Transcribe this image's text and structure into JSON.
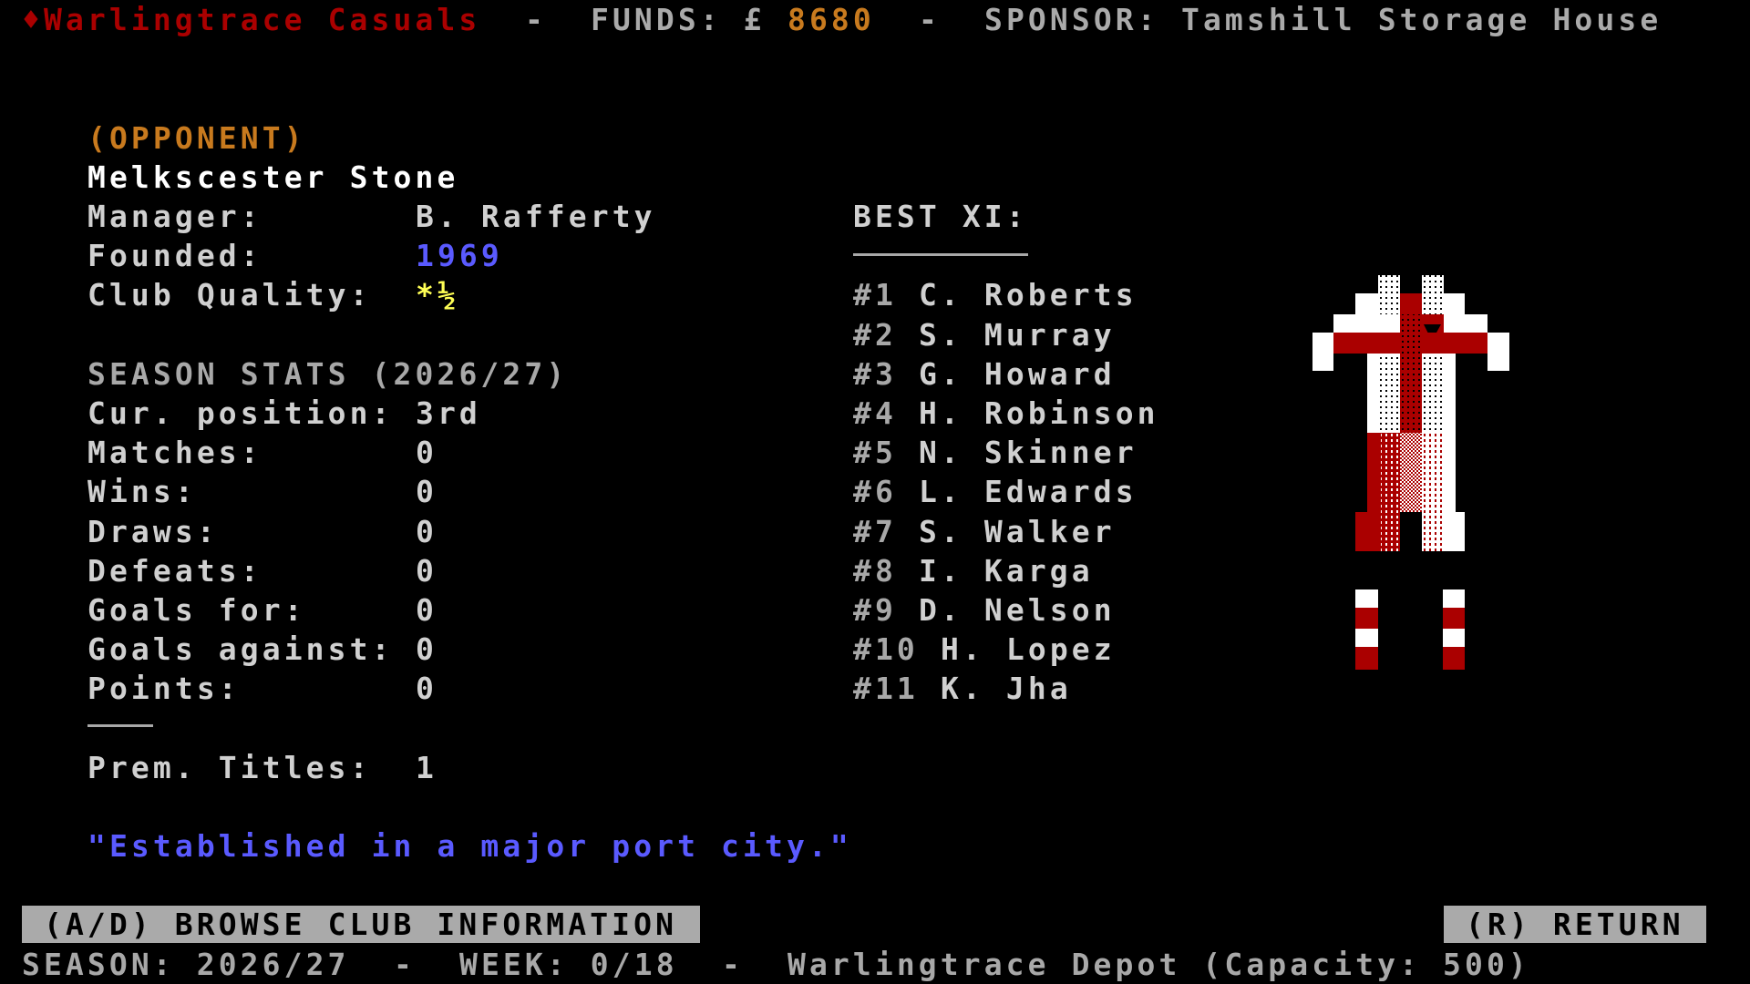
{
  "header": {
    "team_icon": "diamond-icon",
    "team_name": "Warlingtrace Casuals",
    "sep1": "-",
    "funds_label": "FUNDS: £",
    "funds_value": "8680",
    "sep2": "-",
    "sponsor_label": "SPONSOR:",
    "sponsor_value": "Tamshill Storage House"
  },
  "club": {
    "tag": "(OPPONENT)",
    "name": "Melkscester Stone",
    "manager_label": "Manager:",
    "manager": "B. Rafferty",
    "founded_label": "Founded:",
    "founded": "1969",
    "quality_label": "Club Quality:",
    "quality": "*½",
    "quality_stars": 1.5,
    "season_heading": "SEASON STATS (2026/27)",
    "stats": [
      {
        "label": "Cur. position:",
        "value": "3rd"
      },
      {
        "label": "Matches:",
        "value": "0"
      },
      {
        "label": "Wins:",
        "value": "0"
      },
      {
        "label": "Draws:",
        "value": "0"
      },
      {
        "label": "Defeats:",
        "value": "0"
      },
      {
        "label": "Goals for:",
        "value": "0"
      },
      {
        "label": "Goals against:",
        "value": "0"
      },
      {
        "label": "Points:",
        "value": "0"
      }
    ],
    "titles_label": "Prem. Titles:",
    "titles": "1",
    "quote": "\"Established in a major port city.\""
  },
  "best_xi": {
    "heading": "BEST XI:",
    "players": [
      {
        "num": "#1",
        "name": "C. Roberts"
      },
      {
        "num": "#2",
        "name": "S. Murray"
      },
      {
        "num": "#3",
        "name": "G. Howard"
      },
      {
        "num": "#4",
        "name": "H. Robinson"
      },
      {
        "num": "#5",
        "name": "N. Skinner"
      },
      {
        "num": "#6",
        "name": "L. Edwards"
      },
      {
        "num": "#7",
        "name": "S. Walker"
      },
      {
        "num": "#8",
        "name": "I. Karga"
      },
      {
        "num": "#9",
        "name": "D. Nelson"
      },
      {
        "num": "#10",
        "name": "H. Lopez"
      },
      {
        "num": "#11",
        "name": "K. Jha"
      }
    ]
  },
  "kit": {
    "primary": "#ffffff",
    "secondary": "#aa0000"
  },
  "footer": {
    "browse_button": "(A/D) BROWSE CLUB INFORMATION",
    "return_button": "(R) RETURN",
    "season_label": "SEASON: 2026/27",
    "sep1": "-",
    "week_label": "WEEK: 0/18",
    "sep2": "-",
    "stadium": "Warlingtrace Depot (Capacity: 500)"
  }
}
